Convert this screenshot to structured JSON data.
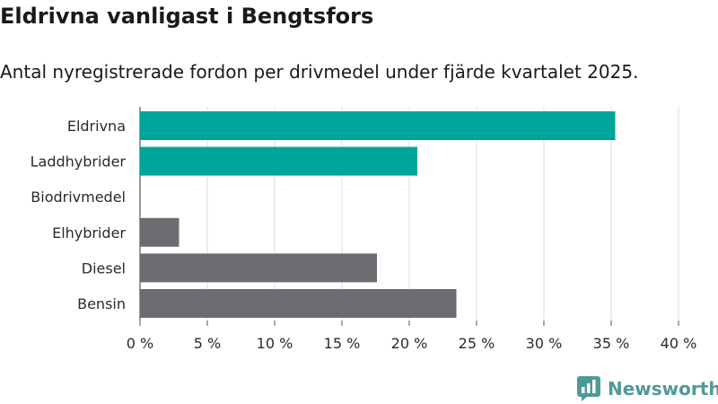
{
  "chart_data": {
    "type": "bar",
    "orientation": "horizontal",
    "title": "Eldrivna vanligast i Bengtsfors",
    "subtitle": "Antal nyregistrerade fordon per drivmedel under fjärde kvartalet 2025.",
    "categories": [
      "Eldrivna",
      "Laddhybrider",
      "Biodrivmedel",
      "Elhybrider",
      "Diesel",
      "Bensin"
    ],
    "values": [
      35.3,
      20.6,
      0,
      2.9,
      17.6,
      23.5
    ],
    "colors": [
      "#00a59a",
      "#00a59a",
      "#00a59a",
      "#6d6b72",
      "#6d6b72",
      "#6d6b72"
    ],
    "xlim": [
      0,
      40
    ],
    "x_ticks": [
      0,
      5,
      10,
      15,
      20,
      25,
      30,
      35,
      40
    ],
    "x_tick_labels": [
      "0 %",
      "5 %",
      "10 %",
      "15 %",
      "20 %",
      "25 %",
      "30 %",
      "35 %",
      "40 %"
    ],
    "grid": true
  },
  "brand": {
    "name": "Newsworthy",
    "logo_icon": "newsworthy-bar-chart-icon",
    "color": "#4f9a97"
  }
}
